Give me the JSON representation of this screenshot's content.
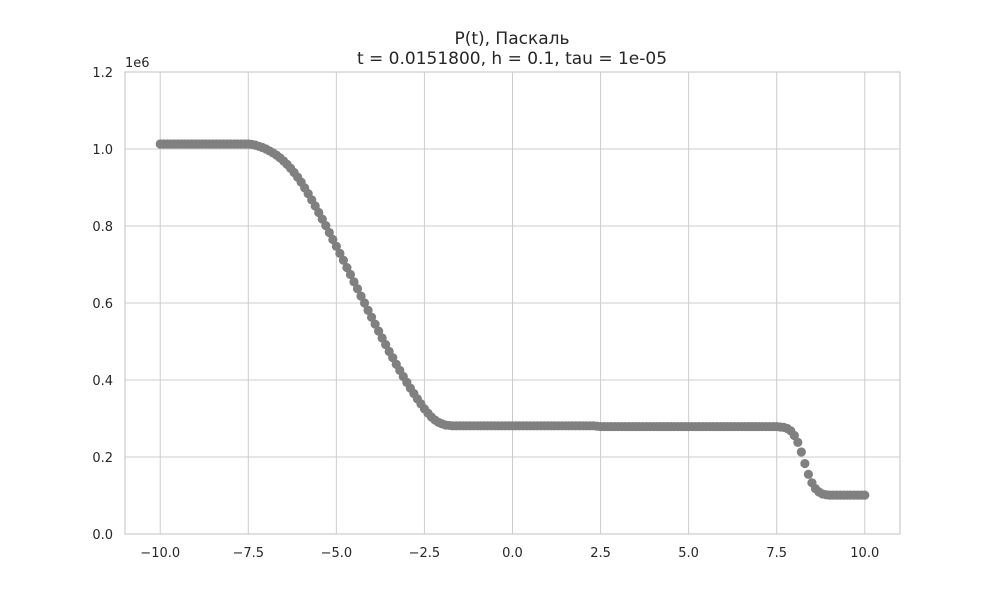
{
  "chart_data": {
    "type": "scatter",
    "title": "P(t), Паскаль",
    "subtitle": "t = 0.0151800, h = 0.1, tau = 1e-05",
    "xlabel": "",
    "ylabel": "",
    "xlim": [
      -11,
      11
    ],
    "ylim": [
      0,
      1.2
    ],
    "y_scale_label": "1e6",
    "grid": true,
    "x_ticks": [
      -10.0,
      -7.5,
      -5.0,
      -2.5,
      0.0,
      2.5,
      5.0,
      7.5,
      10.0
    ],
    "x_tick_labels": [
      "−10.0",
      "−7.5",
      "−5.0",
      "−2.5",
      "0.0",
      "2.5",
      "5.0",
      "7.5",
      "10.0"
    ],
    "y_ticks": [
      0.0,
      0.2,
      0.4,
      0.6,
      0.8,
      1.0,
      1.2
    ],
    "y_tick_labels": [
      "0.0",
      "0.2",
      "0.4",
      "0.6",
      "0.8",
      "1.0",
      "1.2"
    ],
    "x_start": -10.0,
    "x_step": 0.1,
    "point_color": "#808080",
    "grid_color": "#cccccc",
    "y": [
      1.013,
      1.013,
      1.013,
      1.013,
      1.013,
      1.013,
      1.013,
      1.013,
      1.013,
      1.013,
      1.013,
      1.013,
      1.013,
      1.013,
      1.013,
      1.013,
      1.013,
      1.013,
      1.013,
      1.013,
      1.013,
      1.013,
      1.013,
      1.013,
      1.013,
      1.013,
      1.012,
      1.01,
      1.007,
      1.004,
      1.0,
      0.995,
      0.99,
      0.984,
      0.977,
      0.969,
      0.96,
      0.95,
      0.939,
      0.927,
      0.914,
      0.899,
      0.884,
      0.868,
      0.852,
      0.835,
      0.818,
      0.801,
      0.783,
      0.765,
      0.747,
      0.729,
      0.711,
      0.692,
      0.674,
      0.655,
      0.637,
      0.618,
      0.6,
      0.581,
      0.563,
      0.545,
      0.527,
      0.509,
      0.492,
      0.474,
      0.458,
      0.441,
      0.425,
      0.409,
      0.394,
      0.379,
      0.365,
      0.351,
      0.338,
      0.325,
      0.314,
      0.304,
      0.296,
      0.29,
      0.286,
      0.283,
      0.282,
      0.281,
      0.281,
      0.281,
      0.281,
      0.281,
      0.281,
      0.281,
      0.281,
      0.281,
      0.281,
      0.281,
      0.281,
      0.281,
      0.281,
      0.281,
      0.281,
      0.281,
      0.281,
      0.281,
      0.281,
      0.281,
      0.281,
      0.281,
      0.281,
      0.281,
      0.281,
      0.281,
      0.281,
      0.281,
      0.281,
      0.281,
      0.281,
      0.281,
      0.281,
      0.281,
      0.281,
      0.281,
      0.281,
      0.281,
      0.281,
      0.281,
      0.28,
      0.279,
      0.279,
      0.279,
      0.279,
      0.279,
      0.279,
      0.279,
      0.279,
      0.279,
      0.279,
      0.279,
      0.279,
      0.279,
      0.279,
      0.279,
      0.279,
      0.279,
      0.279,
      0.279,
      0.279,
      0.279,
      0.279,
      0.279,
      0.279,
      0.279,
      0.279,
      0.279,
      0.279,
      0.279,
      0.279,
      0.279,
      0.279,
      0.279,
      0.279,
      0.279,
      0.279,
      0.279,
      0.279,
      0.279,
      0.279,
      0.279,
      0.279,
      0.279,
      0.279,
      0.279,
      0.279,
      0.279,
      0.279,
      0.279,
      0.279,
      0.279,
      0.278,
      0.277,
      0.274,
      0.268,
      0.256,
      0.238,
      0.213,
      0.183,
      0.155,
      0.133,
      0.118,
      0.109,
      0.104,
      0.102,
      0.101,
      0.101,
      0.101,
      0.101,
      0.101,
      0.101,
      0.101,
      0.101,
      0.101,
      0.101,
      0.101
    ]
  }
}
